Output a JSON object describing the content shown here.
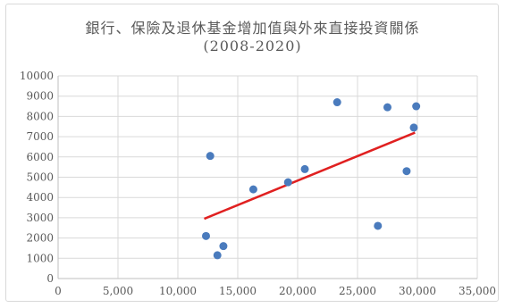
{
  "chart_data": {
    "type": "scatter",
    "title": "銀行、保險及退休基金增加值與外來直接投資關係",
    "subtitle": "(2008-2020)",
    "xlabel": "",
    "ylabel": "",
    "xlim": [
      0,
      35000
    ],
    "ylim": [
      0,
      10000
    ],
    "x_ticks": [
      0,
      5000,
      10000,
      15000,
      20000,
      25000,
      30000,
      35000
    ],
    "x_tick_labels": [
      "0",
      "5,000",
      "10,000",
      "15,000",
      "20,000",
      "25,000",
      "30,000",
      "35,000"
    ],
    "y_ticks": [
      0,
      1000,
      2000,
      3000,
      4000,
      5000,
      6000,
      7000,
      8000,
      9000,
      10000
    ],
    "y_tick_labels": [
      "0",
      "1000",
      "2000",
      "3000",
      "4000",
      "5000",
      "6000",
      "7000",
      "8000",
      "9000",
      "10000"
    ],
    "grid": true,
    "points": [
      {
        "x": 12350,
        "y": 2100
      },
      {
        "x": 12700,
        "y": 6050
      },
      {
        "x": 13300,
        "y": 1150
      },
      {
        "x": 13800,
        "y": 1600
      },
      {
        "x": 16300,
        "y": 4400
      },
      {
        "x": 19200,
        "y": 4750
      },
      {
        "x": 20600,
        "y": 5400
      },
      {
        "x": 23300,
        "y": 8700
      },
      {
        "x": 26700,
        "y": 2600
      },
      {
        "x": 27500,
        "y": 8450
      },
      {
        "x": 29100,
        "y": 5300
      },
      {
        "x": 29700,
        "y": 7450
      },
      {
        "x": 29900,
        "y": 8500
      }
    ],
    "trendline": {
      "x1": 12200,
      "y1": 2950,
      "x2": 29800,
      "y2": 7200
    },
    "point_color": "#4a7bbd",
    "trendline_color": "#e02020",
    "grid_color": "#d9d9d9"
  }
}
